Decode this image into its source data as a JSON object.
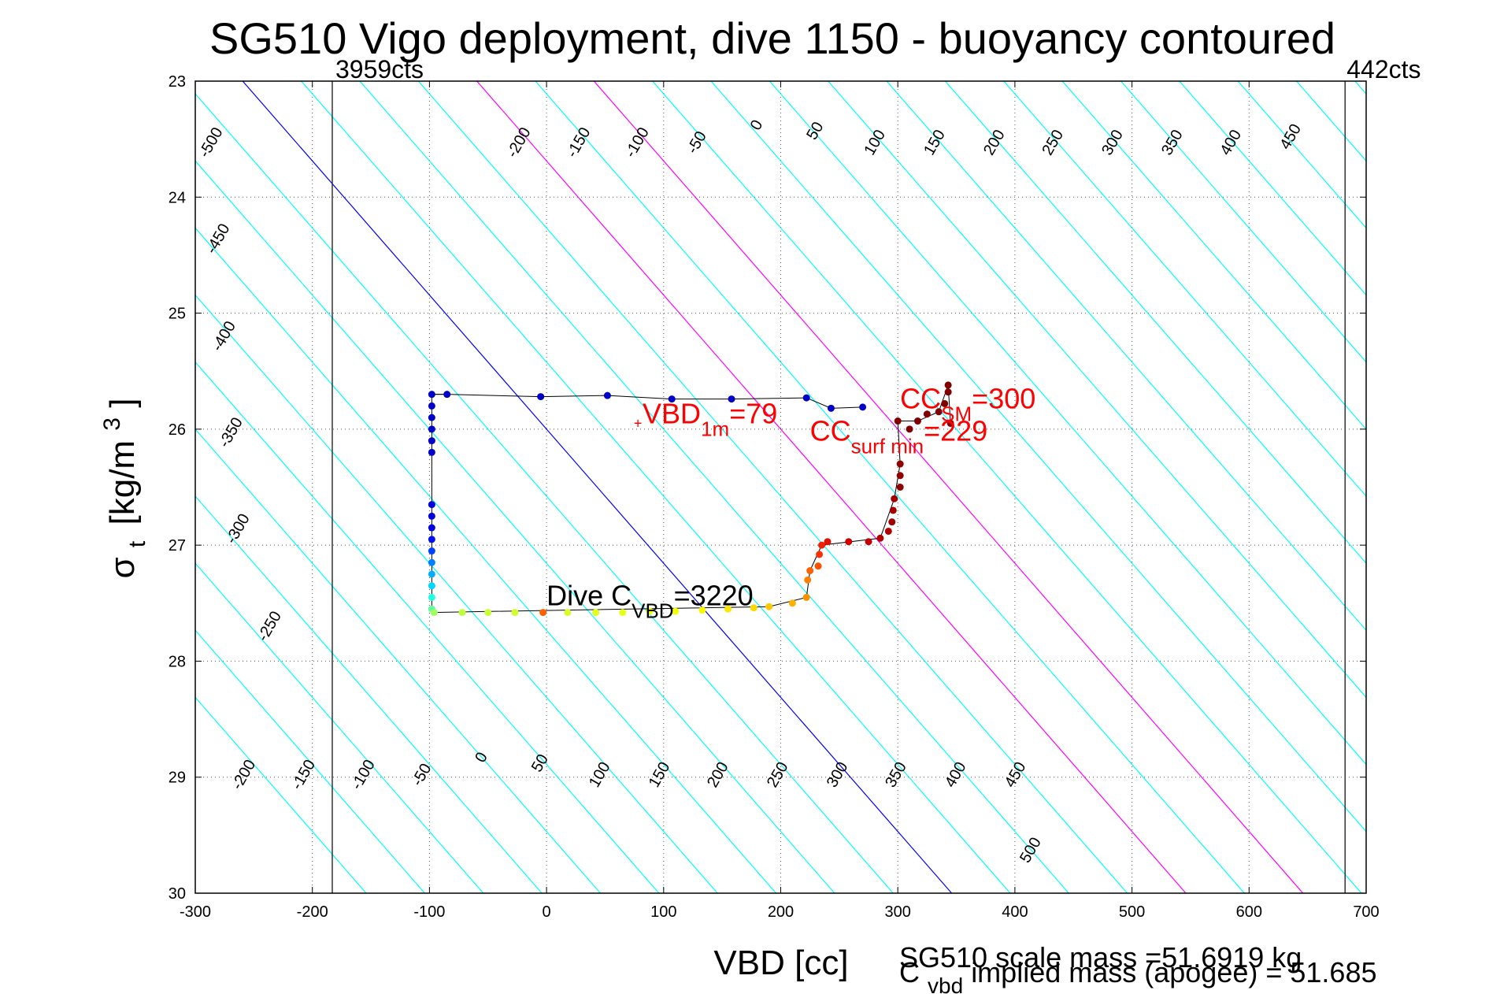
{
  "chart_data": {
    "type": "scatter",
    "title": "SG510 Vigo deployment, dive 1150 - buoyancy contoured",
    "xlabel": "VBD [cc]",
    "ylabel_main": "σ",
    "ylabel_sub": "t",
    "ylabel_units": "[kg/m",
    "ylabel_units_sup": "3",
    "ylabel_units_close": "]",
    "xlim": [
      -300,
      700
    ],
    "ylim": [
      23,
      30
    ],
    "y_reversed": true,
    "grid": true,
    "x_ticks": [
      -300,
      -200,
      -100,
      0,
      100,
      200,
      300,
      400,
      500,
      600,
      700
    ],
    "y_ticks": [
      23,
      24,
      25,
      26,
      27,
      28,
      29,
      30
    ],
    "x_tick_labels": [
      "-300",
      "-200",
      "-100",
      "0",
      "100",
      "200",
      "300",
      "400",
      "500",
      "600",
      "700"
    ],
    "y_tick_labels": [
      "23",
      "24",
      "25",
      "26",
      "27",
      "28",
      "29",
      "30"
    ],
    "contour_values": [
      -500,
      -450,
      -400,
      -350,
      -300,
      -250,
      -200,
      -150,
      -100,
      -50,
      0,
      50,
      100,
      150,
      200,
      250,
      300,
      350,
      400,
      450,
      500,
      550,
      600,
      650,
      700,
      750,
      800,
      850,
      900,
      950
    ],
    "contour_labels_top": [
      {
        "text": "-500",
        "x": -283,
        "y": 23.55
      },
      {
        "text": "-450",
        "x": -277,
        "y": 24.38
      },
      {
        "text": "-400",
        "x": -272,
        "y": 25.22
      },
      {
        "text": "-350",
        "x": -266,
        "y": 26.05
      },
      {
        "text": "-300",
        "x": -260,
        "y": 26.88
      },
      {
        "text": "-250",
        "x": -233,
        "y": 27.72
      },
      {
        "text": "-200",
        "x": -20,
        "y": 23.55
      },
      {
        "text": "-150",
        "x": 31,
        "y": 23.55
      },
      {
        "text": "-100",
        "x": 81,
        "y": 23.55
      },
      {
        "text": "-50",
        "x": 132,
        "y": 23.55
      },
      {
        "text": "0",
        "x": 183,
        "y": 23.4
      },
      {
        "text": "50",
        "x": 233,
        "y": 23.45
      },
      {
        "text": "100",
        "x": 284,
        "y": 23.55
      },
      {
        "text": "150",
        "x": 335,
        "y": 23.55
      },
      {
        "text": "200",
        "x": 386,
        "y": 23.55
      },
      {
        "text": "250",
        "x": 436,
        "y": 23.55
      },
      {
        "text": "300",
        "x": 487,
        "y": 23.55
      },
      {
        "text": "350",
        "x": 538,
        "y": 23.55
      },
      {
        "text": "400",
        "x": 588,
        "y": 23.55
      },
      {
        "text": "450",
        "x": 639,
        "y": 23.5
      }
    ],
    "contour_labels_bottom": [
      {
        "text": "-200",
        "x": -255,
        "y": 29.0
      },
      {
        "text": "-150",
        "x": -204,
        "y": 29.0
      },
      {
        "text": "-100",
        "x": -153,
        "y": 29.0
      },
      {
        "text": "-50",
        "x": -103,
        "y": 29.0
      },
      {
        "text": "0",
        "x": -52,
        "y": 28.85
      },
      {
        "text": "50",
        "x": -2,
        "y": 28.9
      },
      {
        "text": "100",
        "x": 49,
        "y": 29.0
      },
      {
        "text": "150",
        "x": 100,
        "y": 29.0
      },
      {
        "text": "200",
        "x": 150,
        "y": 29.0
      },
      {
        "text": "250",
        "x": 201,
        "y": 29.0
      },
      {
        "text": "300",
        "x": 252,
        "y": 29.0
      },
      {
        "text": "350",
        "x": 302,
        "y": 29.0
      },
      {
        "text": "400",
        "x": 353,
        "y": 29.0
      },
      {
        "text": "450",
        "x": 404,
        "y": 29.0
      },
      {
        "text": "500",
        "x": 417,
        "y": 29.65
      }
    ],
    "highlight_contours": [
      {
        "value": 0,
        "color": "#0000ff"
      },
      {
        "value": 200,
        "color": "#ff00ff"
      },
      {
        "value": 300,
        "color": "#ff00ff"
      }
    ],
    "vlines": [
      {
        "x": -183,
        "label": "3959cts"
      },
      {
        "x": 682,
        "label": "442cts"
      }
    ],
    "trajectory": [
      {
        "x": -98,
        "y": 25.7
      },
      {
        "x": -85,
        "y": 25.7
      },
      {
        "x": -5,
        "y": 25.72
      },
      {
        "x": 52,
        "y": 25.71
      },
      {
        "x": 107,
        "y": 25.74
      },
      {
        "x": 158,
        "y": 25.74
      },
      {
        "x": 222,
        "y": 25.73
      },
      {
        "x": 243,
        "y": 25.82
      },
      {
        "x": 270,
        "y": 25.81
      }
    ],
    "descent_points": [
      {
        "x": -98,
        "y": 25.7,
        "color": "#0000c8"
      },
      {
        "x": -85,
        "y": 25.7,
        "color": "#0000c8"
      },
      {
        "x": -5,
        "y": 25.72,
        "color": "#0000c8"
      },
      {
        "x": 52,
        "y": 25.71,
        "color": "#0000c8"
      },
      {
        "x": 107,
        "y": 25.74,
        "color": "#0000c8"
      },
      {
        "x": 158,
        "y": 25.74,
        "color": "#0000c8"
      },
      {
        "x": 222,
        "y": 25.73,
        "color": "#0000c8"
      },
      {
        "x": 243,
        "y": 25.82,
        "color": "#0000c8"
      },
      {
        "x": 270,
        "y": 25.81,
        "color": "#0000c8"
      },
      {
        "x": -98,
        "y": 25.8,
        "color": "#0000c8"
      },
      {
        "x": -98,
        "y": 25.9,
        "color": "#0000c8"
      },
      {
        "x": -98,
        "y": 26.0,
        "color": "#0000c8"
      },
      {
        "x": -98,
        "y": 26.1,
        "color": "#0000c8"
      },
      {
        "x": -98,
        "y": 26.2,
        "color": "#0000c8"
      },
      {
        "x": -98,
        "y": 26.65,
        "color": "#0000d8"
      },
      {
        "x": -98,
        "y": 26.75,
        "color": "#0000d8"
      },
      {
        "x": -98,
        "y": 26.85,
        "color": "#0000e0"
      },
      {
        "x": -98,
        "y": 26.95,
        "color": "#0010f0"
      },
      {
        "x": -98,
        "y": 27.05,
        "color": "#0040ff"
      },
      {
        "x": -98,
        "y": 27.15,
        "color": "#0080ff"
      },
      {
        "x": -98,
        "y": 27.25,
        "color": "#00b0ff"
      },
      {
        "x": -98,
        "y": 27.35,
        "color": "#00d8ff"
      },
      {
        "x": -98,
        "y": 27.45,
        "color": "#20ffe0"
      },
      {
        "x": -98,
        "y": 27.55,
        "color": "#60ffa0"
      },
      {
        "x": -96,
        "y": 27.58,
        "color": "#a0ff60"
      },
      {
        "x": -72,
        "y": 27.58,
        "color": "#c0ff40"
      },
      {
        "x": -50,
        "y": 27.58,
        "color": "#c8ff38"
      },
      {
        "x": -27,
        "y": 27.58,
        "color": "#d0ff30"
      },
      {
        "x": -3,
        "y": 27.58,
        "color": "#ff6000"
      },
      {
        "x": 18,
        "y": 27.58,
        "color": "#d8ff28"
      },
      {
        "x": 42,
        "y": 27.58,
        "color": "#e0ff20"
      },
      {
        "x": 65,
        "y": 27.58,
        "color": "#e8ff18"
      },
      {
        "x": 88,
        "y": 27.57,
        "color": "#f0ff10"
      },
      {
        "x": 110,
        "y": 27.57,
        "color": "#f0ff10"
      },
      {
        "x": 133,
        "y": 27.56,
        "color": "#f8f800"
      },
      {
        "x": 155,
        "y": 27.55,
        "color": "#ffe800"
      },
      {
        "x": 177,
        "y": 27.54,
        "color": "#ffd800"
      },
      {
        "x": 190,
        "y": 27.53,
        "color": "#ffc800"
      },
      {
        "x": 210,
        "y": 27.5,
        "color": "#ffb000"
      },
      {
        "x": 222,
        "y": 27.45,
        "color": "#ff9000"
      },
      {
        "x": 223,
        "y": 27.3,
        "color": "#ff8000"
      },
      {
        "x": 225,
        "y": 27.22,
        "color": "#ff6000"
      },
      {
        "x": 232,
        "y": 27.18,
        "color": "#ff5000"
      },
      {
        "x": 233,
        "y": 27.08,
        "color": "#ff3000"
      },
      {
        "x": 235,
        "y": 27.0,
        "color": "#f02000"
      },
      {
        "x": 240,
        "y": 26.97,
        "color": "#e01000"
      },
      {
        "x": 258,
        "y": 26.97,
        "color": "#d00000"
      },
      {
        "x": 275,
        "y": 26.97,
        "color": "#c00000"
      },
      {
        "x": 285,
        "y": 26.94,
        "color": "#b00000"
      },
      {
        "x": 292,
        "y": 26.88,
        "color": "#b00000"
      },
      {
        "x": 295,
        "y": 26.8,
        "color": "#a00000"
      },
      {
        "x": 296,
        "y": 26.7,
        "color": "#a00000"
      },
      {
        "x": 297,
        "y": 26.6,
        "color": "#a00000"
      },
      {
        "x": 302,
        "y": 26.5,
        "color": "#900000"
      },
      {
        "x": 302,
        "y": 26.4,
        "color": "#900000"
      },
      {
        "x": 302,
        "y": 26.3,
        "color": "#900000"
      },
      {
        "x": 300,
        "y": 25.93,
        "color": "#800000"
      },
      {
        "x": 310,
        "y": 26.0,
        "color": "#800000"
      },
      {
        "x": 317,
        "y": 25.93,
        "color": "#800000"
      },
      {
        "x": 325,
        "y": 25.87,
        "color": "#800000"
      },
      {
        "x": 335,
        "y": 25.85,
        "color": "#800000"
      },
      {
        "x": 340,
        "y": 25.78,
        "color": "#800000"
      },
      {
        "x": 343,
        "y": 25.68,
        "color": "#800000"
      },
      {
        "x": 343,
        "y": 25.62,
        "color": "#800000"
      },
      {
        "x": 345,
        "y": 25.95,
        "color": "#800000"
      }
    ],
    "path_line": [
      [
        -85,
        25.7
      ],
      [
        -98,
        25.7
      ],
      [
        -98,
        27.58
      ],
      [
        190,
        27.53
      ],
      [
        222,
        27.45
      ],
      [
        225,
        27.22
      ],
      [
        235,
        27.0
      ],
      [
        285,
        26.94
      ],
      [
        297,
        26.6
      ],
      [
        302,
        26.3
      ],
      [
        300,
        25.93
      ],
      [
        317,
        25.93
      ],
      [
        335,
        25.85
      ],
      [
        343,
        25.62
      ],
      [
        345,
        25.95
      ]
    ],
    "annotations": [
      {
        "kind": "red",
        "base": "VBD",
        "sub": "1m",
        "rest": "=79",
        "x": 82,
        "y": 25.95
      },
      {
        "kind": "red",
        "base": "CC",
        "sub": "SM",
        "rest": "=300",
        "x": 302,
        "y": 25.82
      },
      {
        "kind": "red",
        "base": "CC",
        "sub": "surf min",
        "rest": "=229",
        "x": 225,
        "y": 26.1
      },
      {
        "kind": "black",
        "base": "Dive C",
        "sub": "VBD",
        "rest": "=3220",
        "x": 0,
        "y": 27.52
      }
    ],
    "marker_1m": {
      "x": 78,
      "y": 25.95,
      "symbol": "+"
    },
    "footer": {
      "line1": "SG510 scale mass =51.6919 kg",
      "line2_base": "C",
      "line2_sub": "vbd",
      "line2_rest": " implied mass (apogee) = 51.685"
    },
    "colors": {
      "contour": "#00ffff",
      "grid": "#555555",
      "axis": "#000000",
      "trajectory": "#000000",
      "annot_red": "#ff0000"
    }
  }
}
